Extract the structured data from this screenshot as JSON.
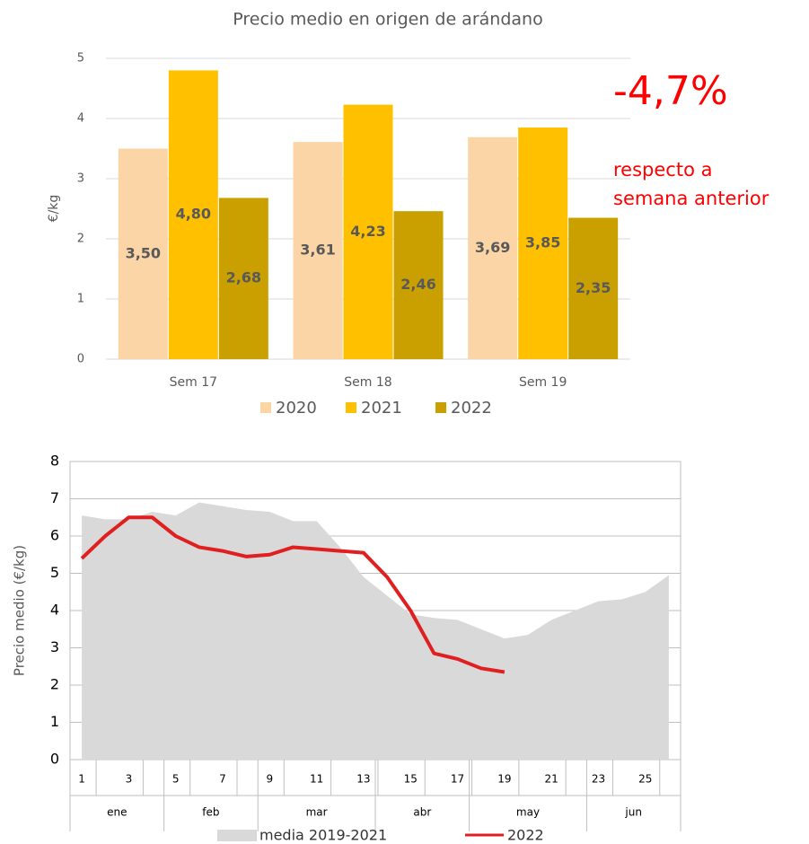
{
  "chart_data": [
    {
      "type": "bar",
      "title": "Precio medio en origen de arándano",
      "ylabel": "€/kg",
      "categories": [
        "Sem 17",
        "Sem 18",
        "Sem 19"
      ],
      "series": [
        {
          "name": "2020",
          "color": "#fcd5a6",
          "values": [
            3.5,
            3.61,
            3.69
          ],
          "value_labels": [
            "3,50",
            "3,61",
            "3,69"
          ]
        },
        {
          "name": "2021",
          "color": "#ffc000",
          "values": [
            4.8,
            4.23,
            3.85
          ],
          "value_labels": [
            "4,80",
            "4,23",
            "3,85"
          ]
        },
        {
          "name": "2022",
          "color": "#c9a000",
          "values": [
            2.68,
            2.46,
            2.35
          ],
          "value_labels": [
            "2,68",
            "2,46",
            "2,35"
          ]
        }
      ],
      "ylim": [
        0,
        5
      ],
      "yticks": [
        0,
        1,
        2,
        3,
        4,
        5
      ],
      "grid": true,
      "legend": "bottom",
      "annotation": {
        "value": "-4,7%",
        "lines": [
          "respecto a",
          "semana anterior"
        ],
        "color": "#ff0000"
      }
    },
    {
      "type": "line",
      "ylabel": "Precio medio (€/kg)",
      "x": [
        1,
        2,
        3,
        4,
        5,
        6,
        7,
        8,
        9,
        10,
        11,
        12,
        13,
        14,
        15,
        16,
        17,
        18,
        19,
        20,
        21,
        22,
        23,
        24,
        25,
        26
      ],
      "xlim": [
        0.5,
        26.5
      ],
      "xticks": [
        1,
        3,
        5,
        7,
        9,
        11,
        13,
        15,
        17,
        19,
        21,
        23,
        25
      ],
      "months": [
        "ene",
        "feb",
        "mar",
        "abr",
        "may",
        "jun"
      ],
      "month_bounds": [
        0.5,
        4.5,
        8.5,
        13.5,
        17.5,
        22.5,
        26.5
      ],
      "ylim": [
        0,
        8
      ],
      "yticks": [
        0,
        1,
        2,
        3,
        4,
        5,
        6,
        7,
        8
      ],
      "grid": true,
      "legend": "bottom",
      "series": [
        {
          "name": "media 2019-2021",
          "type": "area",
          "color": "#d9d9d9",
          "values": [
            6.55,
            6.45,
            6.45,
            6.65,
            6.55,
            6.9,
            6.8,
            6.7,
            6.65,
            6.4,
            6.4,
            5.7,
            4.9,
            4.4,
            3.9,
            3.8,
            3.75,
            3.5,
            3.25,
            3.35,
            3.75,
            4.0,
            4.25,
            4.3,
            4.5,
            4.95
          ]
        },
        {
          "name": "2022",
          "type": "line",
          "color": "#e02020",
          "values": [
            5.4,
            6.0,
            6.5,
            6.5,
            6.0,
            5.7,
            5.6,
            5.45,
            5.5,
            5.7,
            5.65,
            5.6,
            5.55,
            4.9,
            4.0,
            2.85,
            2.7,
            2.45,
            2.35,
            null,
            null,
            null,
            null,
            null,
            null,
            null
          ]
        }
      ]
    }
  ]
}
